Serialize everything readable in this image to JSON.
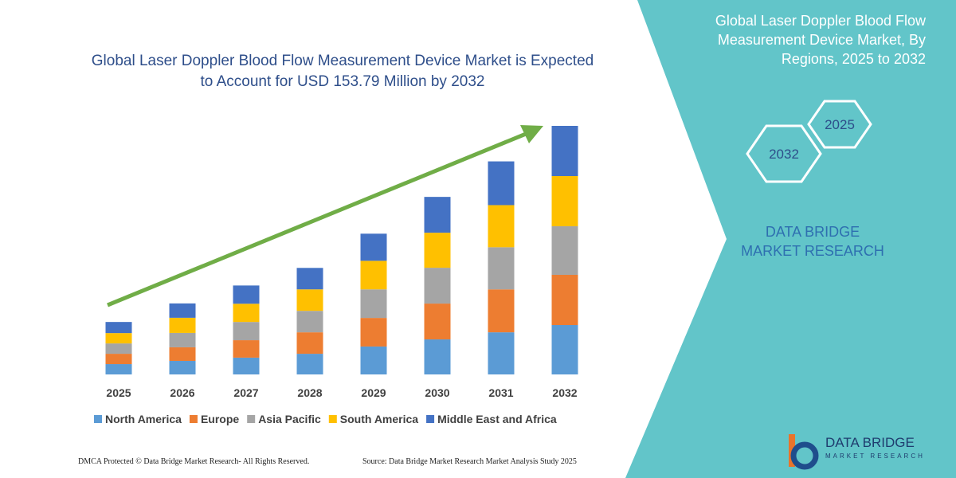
{
  "chart_data": {
    "type": "bar",
    "stacked": true,
    "title": "Global Laser Doppler Blood Flow Measurement Device Market is Expected to Account for USD 153.79 Million by 2032",
    "categories": [
      "2025",
      "2026",
      "2027",
      "2028",
      "2029",
      "2030",
      "2031",
      "2032"
    ],
    "series": [
      {
        "name": "North America",
        "color": "#5b9bd5",
        "values": [
          6.4,
          8.4,
          10.4,
          12.8,
          17.3,
          21.7,
          26.1,
          30.6
        ]
      },
      {
        "name": "Europe",
        "color": "#ed7d31",
        "values": [
          6.4,
          8.4,
          10.8,
          13.3,
          17.7,
          22.2,
          26.6,
          31.1
        ]
      },
      {
        "name": "Asia Pacific",
        "color": "#a5a5a5",
        "values": [
          6.4,
          8.9,
          11.3,
          13.3,
          17.7,
          22.2,
          26.1,
          30.1
        ]
      },
      {
        "name": "South America",
        "color": "#ffc000",
        "values": [
          6.4,
          9.4,
          11.3,
          13.3,
          17.7,
          21.7,
          26.1,
          31.1
        ]
      },
      {
        "name": "Middle East and Africa",
        "color": "#4472c4",
        "values": [
          6.9,
          8.9,
          11.3,
          13.3,
          16.8,
          22.2,
          27.1,
          31.1
        ]
      }
    ],
    "grid": false,
    "legend": "bottom"
  },
  "panel": {
    "title": "Global Laser Doppler Blood Flow Measurement Device Market, By Regions, 2025 to 2032",
    "hexagons": [
      "2025",
      "2032"
    ],
    "brand": "DATA BRIDGE MARKET RESEARCH"
  },
  "logo": {
    "name": "DATA BRIDGE",
    "tagline": "MARKET RESEARCH"
  },
  "footer": {
    "left": "DMCA Protected © Data Bridge Market Research- All Rights Reserved.",
    "right": "Source: Data Bridge Market Research Market Analysis Study 2025"
  }
}
